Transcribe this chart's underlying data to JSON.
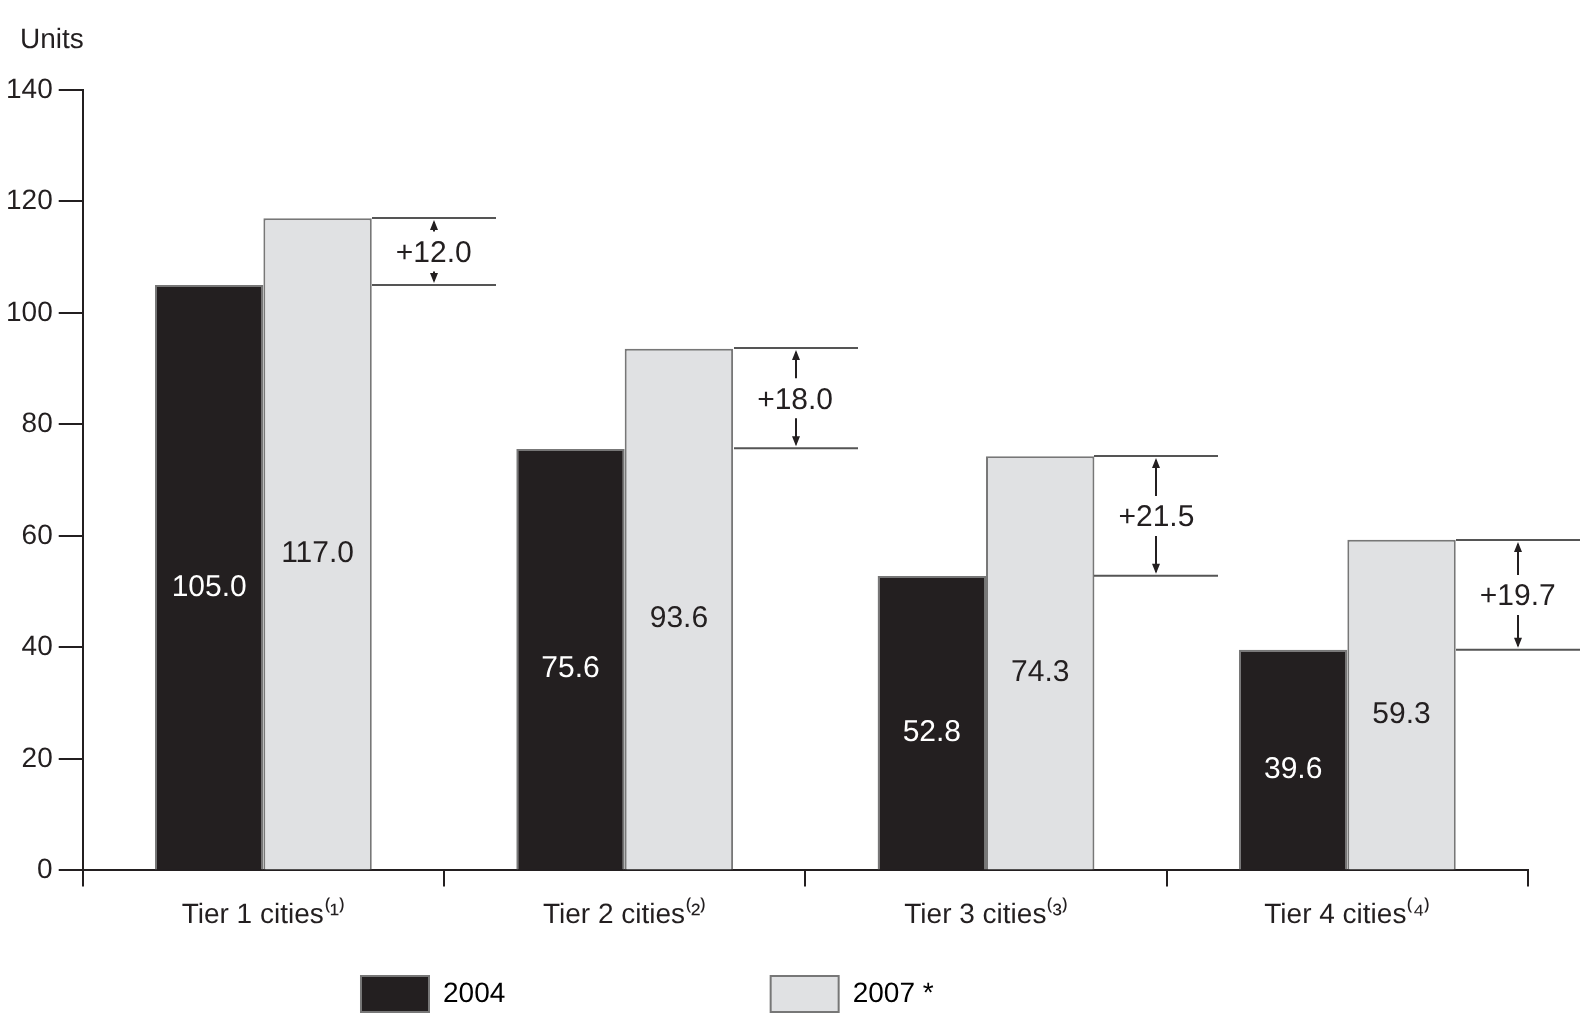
{
  "chart_data": {
    "type": "bar",
    "ylabel": "Units",
    "categories": [
      "Tier 1 cities⁽¹⁾",
      "Tier 2 cities⁽²⁾",
      "Tier 3 cities⁽³⁾",
      "Tier 4 cities⁽⁴⁾"
    ],
    "series": [
      {
        "name": "2004",
        "color": "#231f20",
        "values": [
          105.0,
          75.6,
          52.8,
          39.6
        ],
        "value_labels": [
          "105.0",
          "75.6",
          "52.8",
          "39.6"
        ]
      },
      {
        "name": "2007 *",
        "color": "#e0e1e3",
        "values": [
          117.0,
          93.6,
          74.3,
          59.3
        ],
        "value_labels": [
          "117.0",
          "93.6",
          "74.3",
          "59.3"
        ]
      }
    ],
    "annotations": [
      "+12.0",
      "+18.0",
      "+21.5",
      "+19.7"
    ],
    "ylim": [
      0,
      140
    ],
    "yticks": [
      0,
      20,
      40,
      60,
      80,
      100,
      120,
      140
    ],
    "grid": false,
    "legend": "bottom"
  }
}
